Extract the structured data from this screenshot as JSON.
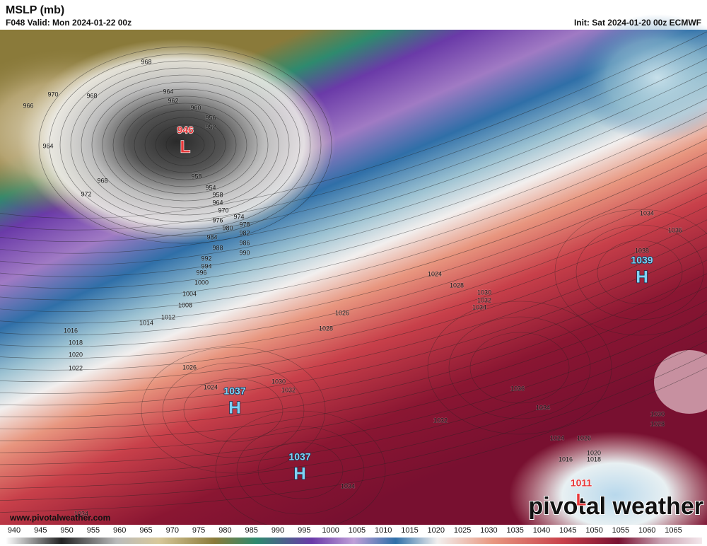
{
  "header": {
    "title": "MSLP (mb)",
    "valid": "F048 Valid: Mon 2024-01-22 00z",
    "init": "Init: Sat 2024-01-20 00z ECMWF"
  },
  "centers": [
    {
      "value": 946,
      "symbol": "L"
    },
    {
      "value": 1039,
      "symbol": "H"
    },
    {
      "value": 1037,
      "symbol": "H"
    },
    {
      "value": 1037,
      "symbol": "H"
    },
    {
      "value": 1011,
      "symbol": "L"
    }
  ],
  "isobar_labels": [
    968,
    970,
    968,
    966,
    964,
    962,
    960,
    956,
    952,
    964,
    968,
    972,
    958,
    954,
    958,
    964,
    970,
    974,
    976,
    978,
    980,
    982,
    984,
    986,
    988,
    990,
    992,
    994,
    996,
    1000,
    1004,
    1008,
    1012,
    1014,
    1016,
    1018,
    1020,
    1022,
    1026,
    1024,
    1030,
    1032,
    1024,
    1028,
    1030,
    1032,
    1034,
    1026,
    1028,
    1034,
    1036,
    1038,
    1036,
    1034,
    1032,
    1030,
    1028,
    1024,
    1026,
    1020,
    1018,
    1016,
    1034,
    1034
  ],
  "colorbar": {
    "ticks": [
      940,
      945,
      950,
      955,
      960,
      965,
      970,
      975,
      980,
      985,
      990,
      995,
      1000,
      1005,
      1010,
      1015,
      1020,
      1025,
      1030,
      1035,
      1040,
      1045,
      1050,
      1055,
      1060,
      1065
    ]
  },
  "watermark": {
    "url": "www.pivotalweather.com",
    "logo": "pivotal weather"
  }
}
